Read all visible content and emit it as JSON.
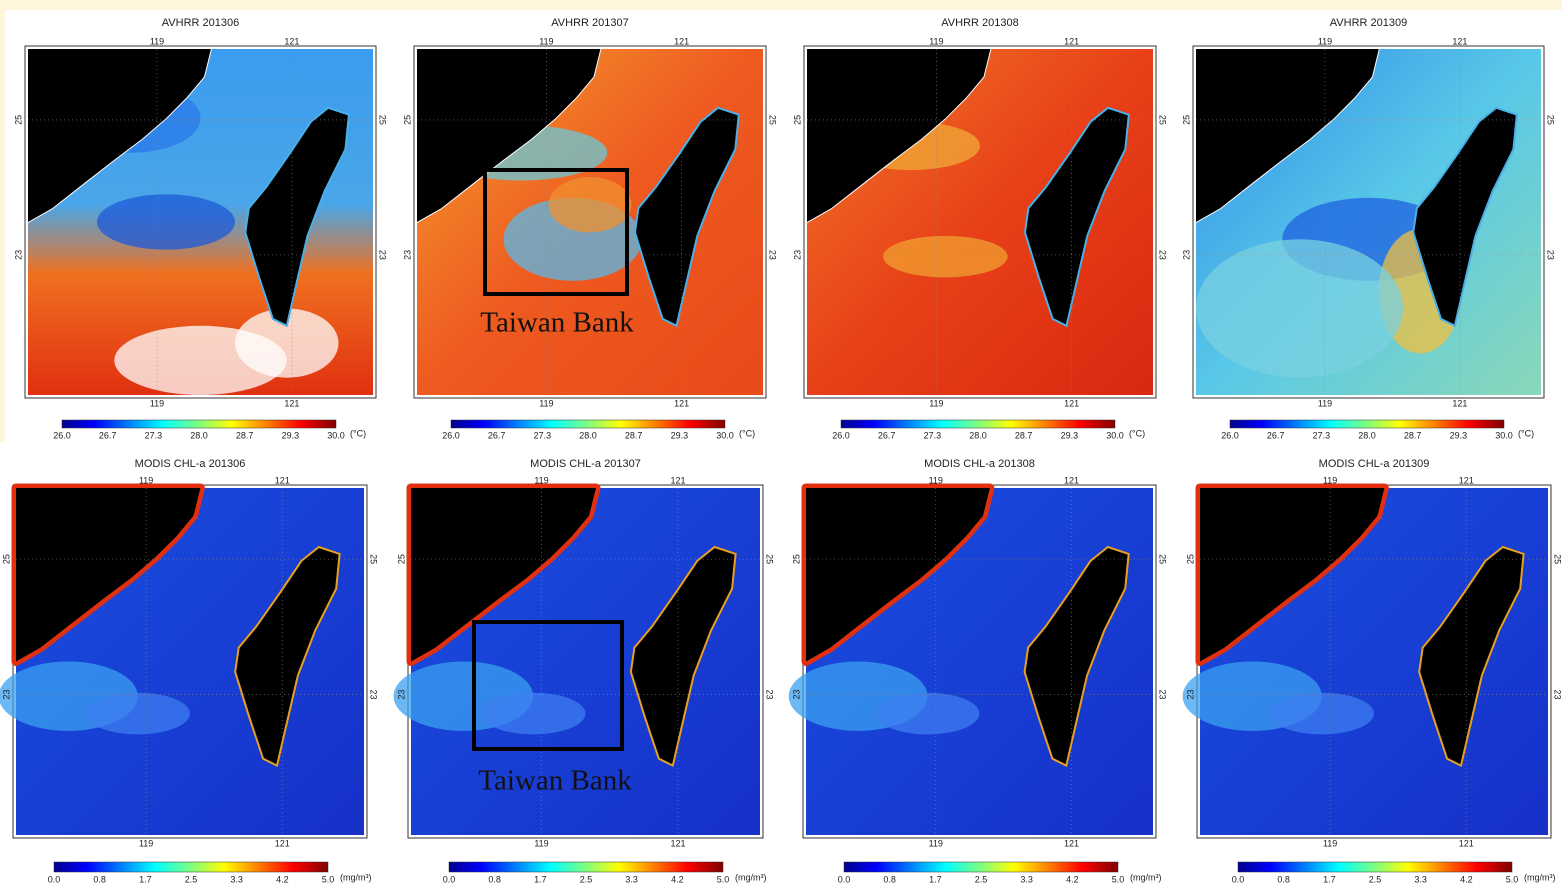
{
  "panels": [
    {
      "title": "AVHRR 201306",
      "lon_labels": [
        "119",
        "121"
      ],
      "lat_labels": [
        "25",
        "23"
      ],
      "colorbar": {
        "ticks": [
          "26.0",
          "26.7",
          "27.3",
          "28.0",
          "28.7",
          "29.3",
          "30.0"
        ],
        "unit": "(°C)"
      }
    },
    {
      "title": "AVHRR 201307",
      "lon_labels": [
        "119",
        "121"
      ],
      "lat_labels": [
        "25",
        "23"
      ],
      "colorbar": {
        "ticks": [
          "26.0",
          "26.7",
          "27.3",
          "28.0",
          "28.7",
          "29.3",
          "30.0"
        ],
        "unit": "(°C)"
      },
      "annotation": "Taiwan Bank"
    },
    {
      "title": "AVHRR 201308",
      "lon_labels": [
        "119",
        "121"
      ],
      "lat_labels": [
        "25",
        "23"
      ],
      "colorbar": {
        "ticks": [
          "26.0",
          "26.7",
          "27.3",
          "28.0",
          "28.7",
          "29.3",
          "30.0"
        ],
        "unit": "(°C)"
      }
    },
    {
      "title": "AVHRR 201309",
      "lon_labels": [
        "119",
        "121"
      ],
      "lat_labels": [
        "25",
        "23"
      ],
      "colorbar": {
        "ticks": [
          "26.0",
          "26.7",
          "27.3",
          "28.0",
          "28.7",
          "29.3",
          "30.0"
        ],
        "unit": "(°C)"
      }
    },
    {
      "title": "MODIS CHL-a 201306",
      "lon_labels": [
        "119",
        "121"
      ],
      "lat_labels": [
        "25",
        "23"
      ],
      "colorbar": {
        "ticks": [
          "0.0",
          "0.8",
          "1.7",
          "2.5",
          "3.3",
          "4.2",
          "5.0"
        ],
        "unit": "(mg/m³)"
      }
    },
    {
      "title": "MODIS CHL-a 201307",
      "lon_labels": [
        "119",
        "121"
      ],
      "lat_labels": [
        "25",
        "23"
      ],
      "colorbar": {
        "ticks": [
          "0.0",
          "0.8",
          "1.7",
          "2.5",
          "3.3",
          "4.2",
          "5.0"
        ],
        "unit": "(mg/m³)"
      },
      "annotation": "Taiwan Bank"
    },
    {
      "title": "MODIS CHL-a 201308",
      "lon_labels": [
        "119",
        "121"
      ],
      "lat_labels": [
        "25",
        "23"
      ],
      "colorbar": {
        "ticks": [
          "0.0",
          "0.8",
          "1.7",
          "2.5",
          "3.3",
          "4.2",
          "5.0"
        ],
        "unit": "(mg/m³)"
      }
    },
    {
      "title": "MODIS CHL-a 201309",
      "lon_labels": [
        "119",
        "121"
      ],
      "lat_labels": [
        "25",
        "23"
      ],
      "colorbar": {
        "ticks": [
          "0.0",
          "0.8",
          "1.7",
          "2.5",
          "3.3",
          "4.2",
          "5.0"
        ],
        "unit": "(mg/m³)"
      }
    }
  ]
}
